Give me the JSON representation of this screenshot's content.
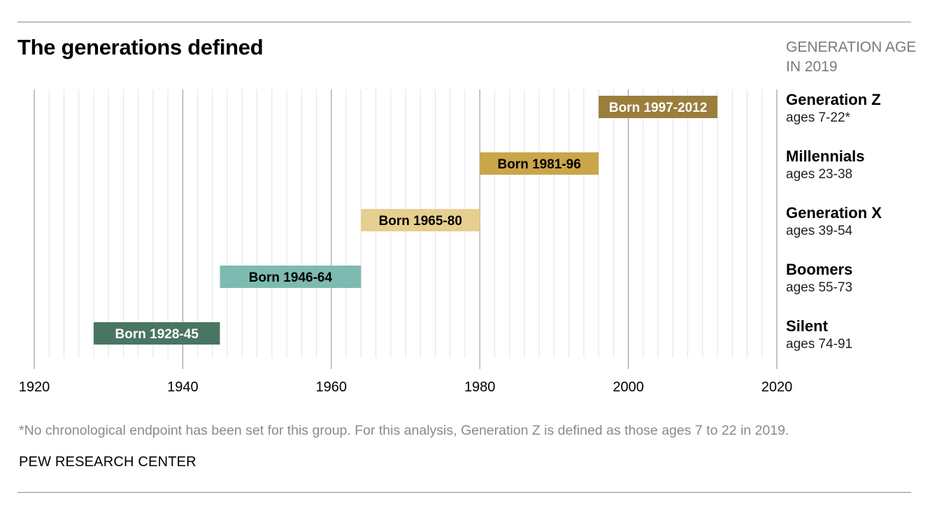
{
  "title": "The generations defined",
  "side_header": {
    "line1": "GENERATION AGE",
    "line2": "IN 2019"
  },
  "note": "*No chronological endpoint has been set for this group. For this analysis, Generation Z is defined as those ages 7 to 22 in 2019.",
  "source": "PEW RESEARCH CENTER",
  "chart_data": {
    "type": "bar",
    "orientation": "horizontal-range",
    "xlim": [
      1920,
      2020
    ],
    "x_ticks": [
      1920,
      1940,
      1960,
      1980,
      2000,
      2020
    ],
    "grid": true,
    "series": [
      {
        "generation": "Generation Z",
        "ages": "ages 7-22*",
        "label": "Born 1997-2012",
        "start": 1996,
        "end": 2012,
        "color": "#9a7e3c",
        "text_color": "#ffffff"
      },
      {
        "generation": "Millennials",
        "ages": "ages 23-38",
        "label": "Born 1981-96",
        "start": 1980,
        "end": 1996,
        "color": "#c9a64a",
        "text_color": "#000000"
      },
      {
        "generation": "Generation X",
        "ages": "ages 39-54",
        "label": "Born 1965-80",
        "start": 1964,
        "end": 1980,
        "color": "#e6cf8f",
        "text_color": "#000000"
      },
      {
        "generation": "Boomers",
        "ages": "ages 55-73",
        "label": "Born 1946-64",
        "start": 1945,
        "end": 1964,
        "color": "#7dbab0",
        "text_color": "#000000"
      },
      {
        "generation": "Silent",
        "ages": "ages 74-91",
        "label": "Born 1928-45",
        "start": 1928,
        "end": 1945,
        "color": "#497563",
        "text_color": "#ffffff"
      }
    ]
  }
}
